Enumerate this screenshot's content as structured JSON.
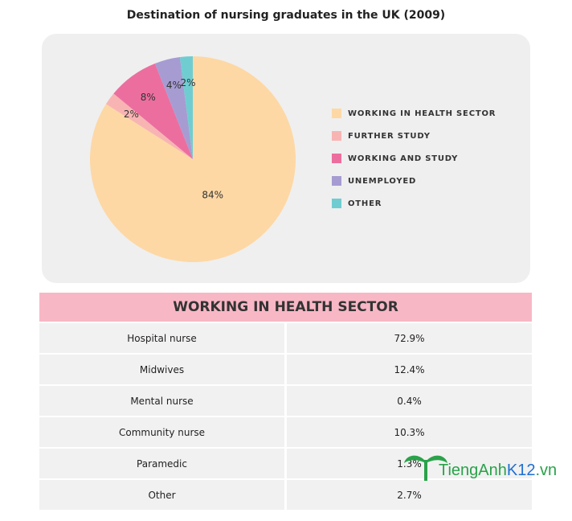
{
  "chart_data": {
    "type": "pie",
    "title": "Destination of nursing graduates in the UK (2009)",
    "categories": [
      "WORKING IN HEALTH SECTOR",
      "FURTHER STUDY",
      "WORKING AND STUDY",
      "UNEMPLOYED",
      "OTHER"
    ],
    "values": [
      84,
      2,
      8,
      4,
      2
    ],
    "value_labels": [
      "84%",
      "2%",
      "8%",
      "4%",
      "2%"
    ],
    "colors": [
      "#fdd8a5",
      "#f8b4b3",
      "#ec6e9f",
      "#a69cd2",
      "#6fcdd1"
    ],
    "legend": "right"
  },
  "table": {
    "title": "WORKING IN HEALTH SECTOR",
    "rows": [
      [
        "Hospital nurse",
        "72.9%"
      ],
      [
        "Midwives",
        "12.4%"
      ],
      [
        "Mental nurse",
        "0.4%"
      ],
      [
        "Community nurse",
        "10.3%"
      ],
      [
        "Paramedic",
        "1.3%"
      ],
      [
        "Other",
        "2.7%"
      ]
    ]
  },
  "watermark": [
    "TiengAnh",
    "K12",
    ".vn"
  ]
}
